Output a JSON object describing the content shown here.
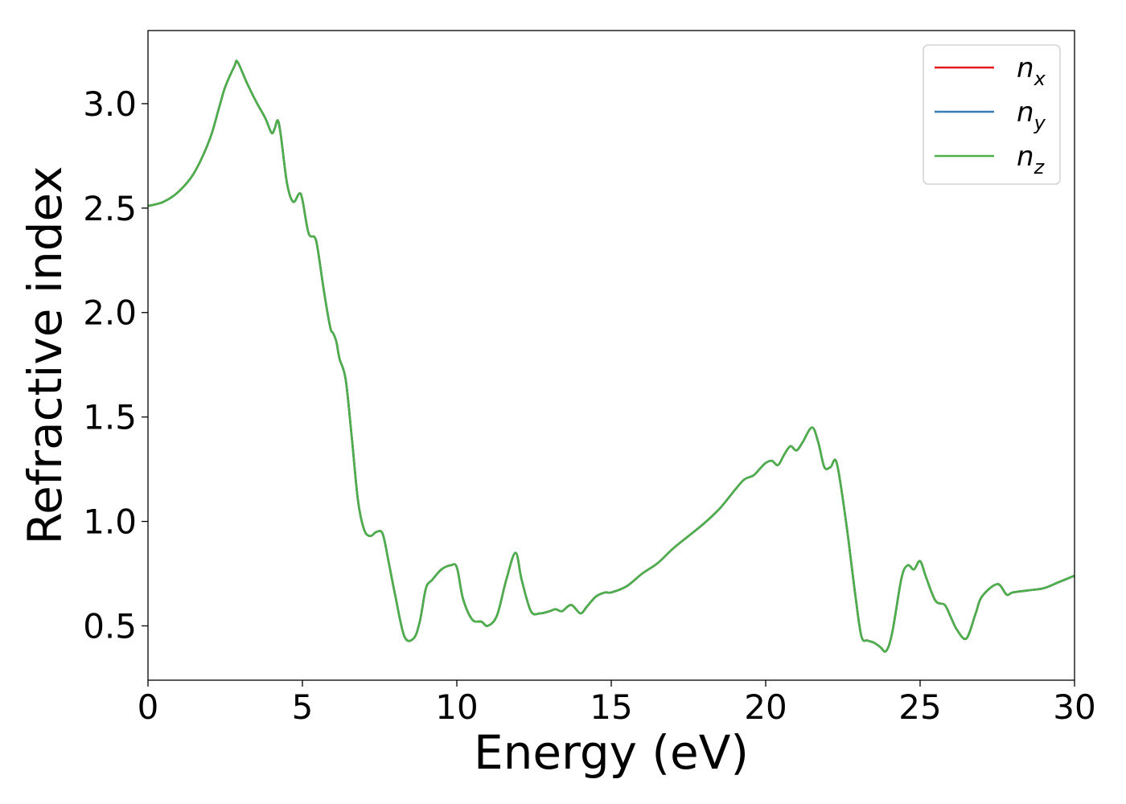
{
  "chart_data": {
    "type": "line",
    "title": "",
    "xlabel": "Energy (eV)",
    "ylabel": "Refractive index",
    "xlim": [
      0,
      30
    ],
    "ylim": [
      0.24,
      3.35
    ],
    "xticks": [
      0,
      5,
      10,
      15,
      20,
      25,
      30
    ],
    "yticks": [
      0.5,
      1.0,
      1.5,
      2.0,
      2.5,
      3.0
    ],
    "xtick_labels": [
      "0",
      "5",
      "10",
      "15",
      "20",
      "25",
      "30"
    ],
    "ytick_labels": [
      "0.5",
      "1.0",
      "1.5",
      "2.0",
      "2.5",
      "3.0"
    ],
    "grid": false,
    "legend_position": "top-right",
    "x": [
      0,
      0.5,
      1.0,
      1.5,
      2.0,
      2.3,
      2.5,
      2.8,
      2.9,
      3.2,
      3.5,
      3.8,
      4.0,
      4.1,
      4.2,
      4.3,
      4.5,
      4.7,
      4.9,
      5.0,
      5.2,
      5.4,
      5.5,
      5.7,
      5.9,
      6.0,
      6.1,
      6.2,
      6.4,
      6.6,
      6.8,
      7.0,
      7.2,
      7.4,
      7.6,
      7.8,
      8.0,
      8.3,
      8.6,
      8.8,
      9.0,
      9.2,
      9.5,
      9.8,
      10.0,
      10.2,
      10.5,
      10.8,
      11.0,
      11.3,
      11.6,
      11.9,
      12.1,
      12.4,
      12.7,
      13.0,
      13.2,
      13.4,
      13.7,
      14.0,
      14.2,
      14.5,
      14.8,
      15.0,
      15.5,
      16.0,
      16.5,
      17.0,
      17.5,
      18.0,
      18.5,
      19.0,
      19.3,
      19.6,
      19.8,
      20.0,
      20.2,
      20.4,
      20.6,
      20.8,
      21.0,
      21.2,
      21.5,
      21.7,
      21.9,
      22.1,
      22.3,
      22.6,
      22.9,
      23.1,
      23.3,
      23.5,
      23.7,
      23.9,
      24.1,
      24.4,
      24.6,
      24.8,
      25.0,
      25.2,
      25.5,
      25.8,
      26.0,
      26.2,
      26.5,
      26.8,
      27.0,
      27.5,
      27.8,
      28.0,
      28.5,
      29.0,
      29.5,
      30.0
    ],
    "series": [
      {
        "name": "n_x",
        "label_base": "n",
        "label_sub": "x",
        "color": "#e41a1c",
        "values": [
          2.51,
          2.53,
          2.58,
          2.67,
          2.83,
          2.98,
          3.08,
          3.18,
          3.2,
          3.1,
          3.01,
          2.93,
          2.86,
          2.88,
          2.92,
          2.85,
          2.62,
          2.53,
          2.57,
          2.54,
          2.38,
          2.36,
          2.3,
          2.1,
          1.93,
          1.9,
          1.86,
          1.78,
          1.68,
          1.4,
          1.1,
          0.96,
          0.93,
          0.95,
          0.94,
          0.8,
          0.65,
          0.45,
          0.44,
          0.52,
          0.68,
          0.72,
          0.77,
          0.79,
          0.78,
          0.63,
          0.53,
          0.52,
          0.5,
          0.55,
          0.72,
          0.85,
          0.72,
          0.57,
          0.56,
          0.57,
          0.58,
          0.57,
          0.6,
          0.56,
          0.59,
          0.64,
          0.66,
          0.66,
          0.69,
          0.75,
          0.8,
          0.87,
          0.93,
          0.99,
          1.06,
          1.15,
          1.2,
          1.22,
          1.25,
          1.28,
          1.29,
          1.27,
          1.32,
          1.36,
          1.34,
          1.38,
          1.45,
          1.38,
          1.26,
          1.26,
          1.28,
          1.0,
          0.65,
          0.45,
          0.43,
          0.42,
          0.4,
          0.38,
          0.47,
          0.73,
          0.79,
          0.77,
          0.81,
          0.73,
          0.62,
          0.6,
          0.54,
          0.48,
          0.44,
          0.56,
          0.64,
          0.7,
          0.65,
          0.66,
          0.67,
          0.68,
          0.71,
          0.74
        ]
      },
      {
        "name": "n_y",
        "label_base": "n",
        "label_sub": "y",
        "color": "#377eb8",
        "values": [
          2.51,
          2.53,
          2.58,
          2.67,
          2.83,
          2.98,
          3.08,
          3.18,
          3.2,
          3.1,
          3.01,
          2.93,
          2.86,
          2.88,
          2.92,
          2.85,
          2.62,
          2.53,
          2.57,
          2.54,
          2.38,
          2.36,
          2.3,
          2.1,
          1.93,
          1.9,
          1.86,
          1.78,
          1.68,
          1.4,
          1.1,
          0.96,
          0.93,
          0.95,
          0.94,
          0.8,
          0.65,
          0.45,
          0.44,
          0.52,
          0.68,
          0.72,
          0.77,
          0.79,
          0.78,
          0.63,
          0.53,
          0.52,
          0.5,
          0.55,
          0.72,
          0.85,
          0.72,
          0.57,
          0.56,
          0.57,
          0.58,
          0.57,
          0.6,
          0.56,
          0.59,
          0.64,
          0.66,
          0.66,
          0.69,
          0.75,
          0.8,
          0.87,
          0.93,
          0.99,
          1.06,
          1.15,
          1.2,
          1.22,
          1.25,
          1.28,
          1.29,
          1.27,
          1.32,
          1.36,
          1.34,
          1.38,
          1.45,
          1.38,
          1.26,
          1.26,
          1.28,
          1.0,
          0.65,
          0.45,
          0.43,
          0.42,
          0.4,
          0.38,
          0.47,
          0.73,
          0.79,
          0.77,
          0.81,
          0.73,
          0.62,
          0.6,
          0.54,
          0.48,
          0.44,
          0.56,
          0.64,
          0.7,
          0.65,
          0.66,
          0.67,
          0.68,
          0.71,
          0.74
        ]
      },
      {
        "name": "n_z",
        "label_base": "n",
        "label_sub": "z",
        "color": "#4daf4a",
        "values": [
          2.51,
          2.53,
          2.58,
          2.67,
          2.83,
          2.98,
          3.08,
          3.18,
          3.2,
          3.1,
          3.01,
          2.93,
          2.86,
          2.88,
          2.92,
          2.85,
          2.62,
          2.53,
          2.57,
          2.54,
          2.38,
          2.36,
          2.3,
          2.1,
          1.93,
          1.9,
          1.86,
          1.78,
          1.68,
          1.4,
          1.1,
          0.96,
          0.93,
          0.95,
          0.94,
          0.8,
          0.65,
          0.45,
          0.44,
          0.52,
          0.68,
          0.72,
          0.77,
          0.79,
          0.78,
          0.63,
          0.53,
          0.52,
          0.5,
          0.55,
          0.72,
          0.85,
          0.72,
          0.57,
          0.56,
          0.57,
          0.58,
          0.57,
          0.6,
          0.56,
          0.59,
          0.64,
          0.66,
          0.66,
          0.69,
          0.75,
          0.8,
          0.87,
          0.93,
          0.99,
          1.06,
          1.15,
          1.2,
          1.22,
          1.25,
          1.28,
          1.29,
          1.27,
          1.32,
          1.36,
          1.34,
          1.38,
          1.45,
          1.38,
          1.26,
          1.26,
          1.28,
          1.0,
          0.65,
          0.45,
          0.43,
          0.42,
          0.4,
          0.38,
          0.47,
          0.73,
          0.79,
          0.77,
          0.81,
          0.73,
          0.62,
          0.6,
          0.54,
          0.48,
          0.44,
          0.56,
          0.64,
          0.7,
          0.65,
          0.66,
          0.67,
          0.68,
          0.71,
          0.74
        ]
      }
    ]
  }
}
